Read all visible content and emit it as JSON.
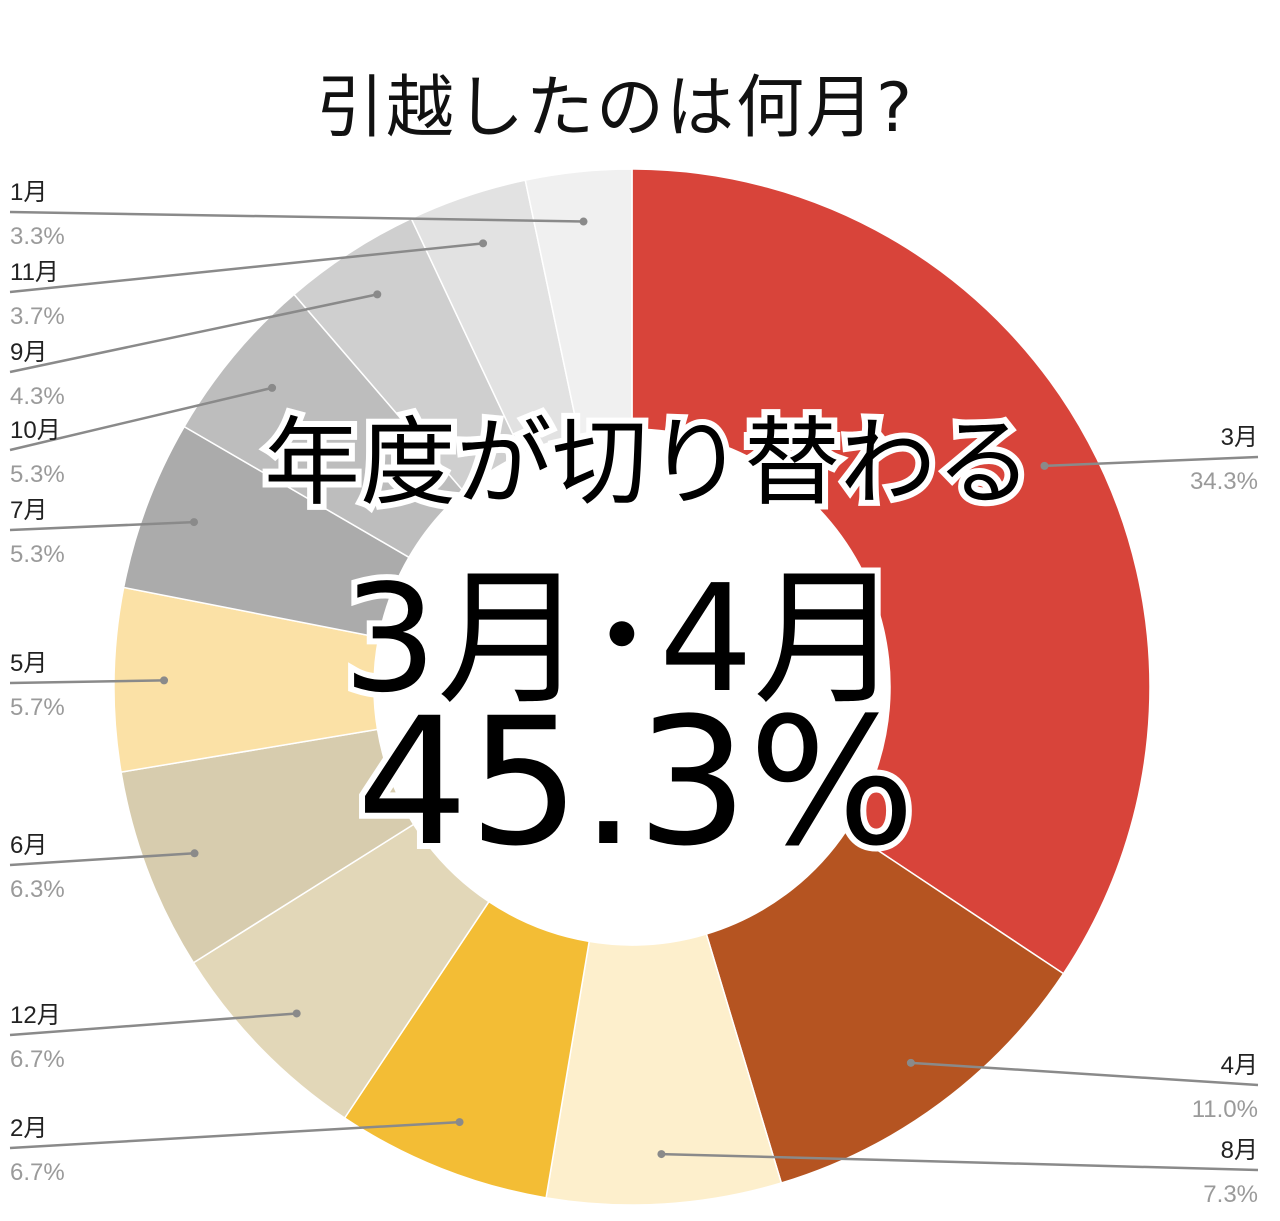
{
  "chart_data": {
    "type": "pie",
    "title": "引越したのは何月?",
    "slices": [
      {
        "label": "3月",
        "value": 34.3,
        "value_label": "34.3%",
        "color": "#d8443a"
      },
      {
        "label": "4月",
        "value": 11.0,
        "value_label": "11.0%",
        "color": "#b55421"
      },
      {
        "label": "8月",
        "value": 7.3,
        "value_label": "7.3%",
        "color": "#fdefcc"
      },
      {
        "label": "2月",
        "value": 6.7,
        "value_label": "6.7%",
        "color": "#f3bd35"
      },
      {
        "label": "12月",
        "value": 6.7,
        "value_label": "6.7%",
        "color": "#e2d7b8"
      },
      {
        "label": "6月",
        "value": 6.3,
        "value_label": "6.3%",
        "color": "#d7ccae"
      },
      {
        "label": "5月",
        "value": 5.7,
        "value_label": "5.7%",
        "color": "#fbe1a6"
      },
      {
        "label": "7月",
        "value": 5.3,
        "value_label": "5.3%",
        "color": "#ababab"
      },
      {
        "label": "10月",
        "value": 5.3,
        "value_label": "5.3%",
        "color": "#bdbdbd"
      },
      {
        "label": "9月",
        "value": 4.3,
        "value_label": "4.3%",
        "color": "#cfcfcf"
      },
      {
        "label": "11月",
        "value": 3.7,
        "value_label": "3.7%",
        "color": "#e2e2e2"
      },
      {
        "label": "1月",
        "value": 3.3,
        "value_label": "3.3%",
        "color": "#f0f0f0"
      }
    ],
    "annotation": {
      "line1": "年度が切り替わる",
      "line2": "3月･4月",
      "line3": "45.3%"
    },
    "legend": "callout labels"
  }
}
